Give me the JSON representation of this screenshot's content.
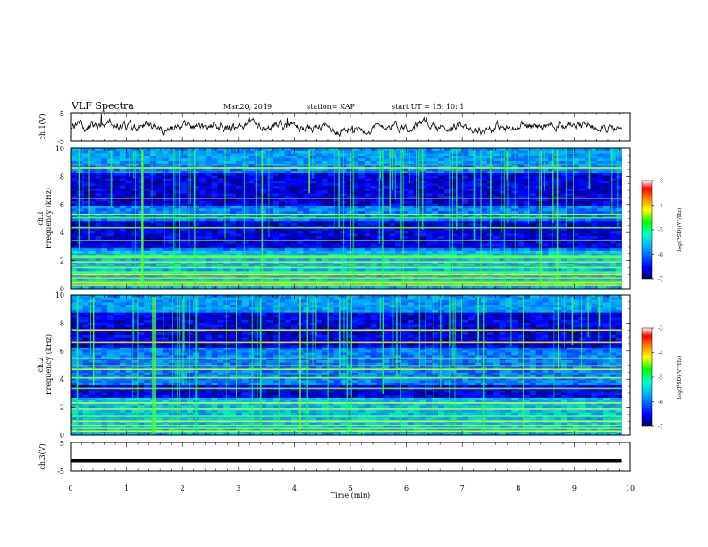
{
  "header": {
    "title": "VLF Spectra",
    "date": "Mar.20, 2019",
    "station": "station= KAP",
    "start": "start  UT =   15: 10: 1"
  },
  "chart_data": [
    {
      "type": "line",
      "name": "ch1-waveform",
      "ylabel": "ch.1(V)",
      "ylim": [
        -5,
        5
      ],
      "ytick_labels": [
        "5",
        "-5"
      ],
      "xlim": [
        0,
        10
      ],
      "x_extent_min": 9.85,
      "color": "#000000"
    },
    {
      "type": "heatmap",
      "name": "ch1-spectrogram",
      "ylabel": "ch.1\nFrequency (kHz)",
      "ylim": [
        0,
        10
      ],
      "yticks": [
        0,
        2,
        4,
        6,
        8,
        10
      ],
      "xlim": [
        0,
        10
      ],
      "x_extent_min": 9.85,
      "quiet_band_khz": [
        [
          5.9,
          8.3
        ],
        [
          2.8,
          4.8
        ]
      ],
      "emission_lines_khz": [
        0.25,
        0.4,
        0.55,
        0.75,
        1.0,
        1.2,
        1.5,
        1.9,
        2.2,
        2.35,
        3.45,
        4.35,
        5.05,
        5.3,
        6.45,
        8.6
      ],
      "colorbar": {
        "label": "log(PSD)(V²/Hz)",
        "min": -7,
        "max": -3,
        "ticks": [
          -7,
          -6,
          -5,
          -4,
          -3
        ]
      }
    },
    {
      "type": "heatmap",
      "name": "ch2-spectrogram",
      "ylabel": "ch.2\nFrequency (kHz)",
      "ylim": [
        0,
        10
      ],
      "yticks": [
        0,
        2,
        4,
        6,
        8,
        10
      ],
      "xlim": [
        0,
        10
      ],
      "x_extent_min": 9.85,
      "quiet_band_khz": [
        [
          6.3,
          9.2
        ],
        [
          2.6,
          3.5
        ]
      ],
      "emission_lines_khz": [
        0.3,
        0.5,
        0.7,
        1.0,
        1.4,
        1.85,
        2.3,
        3.35,
        4.1,
        4.7,
        4.95,
        5.5,
        6.6,
        7.5
      ],
      "colorbar": {
        "label": "log(PSD)(V²/Hz)",
        "min": -7,
        "max": -3,
        "ticks": [
          -7,
          -6,
          -5,
          -4,
          -3
        ]
      }
    },
    {
      "type": "line",
      "name": "ch3-waveform",
      "ylabel": "ch.3(V)",
      "ylim": [
        -5,
        5
      ],
      "ytick_labels": [
        "5",
        "-5"
      ],
      "values_v": [
        -1.4
      ],
      "xlim": [
        0,
        10
      ],
      "xlabel": "Time  (min)",
      "xticks": [
        0,
        1,
        2,
        3,
        4,
        5,
        6,
        7,
        8,
        9,
        10
      ],
      "x_extent_min": 9.85,
      "color": "#000000"
    }
  ]
}
